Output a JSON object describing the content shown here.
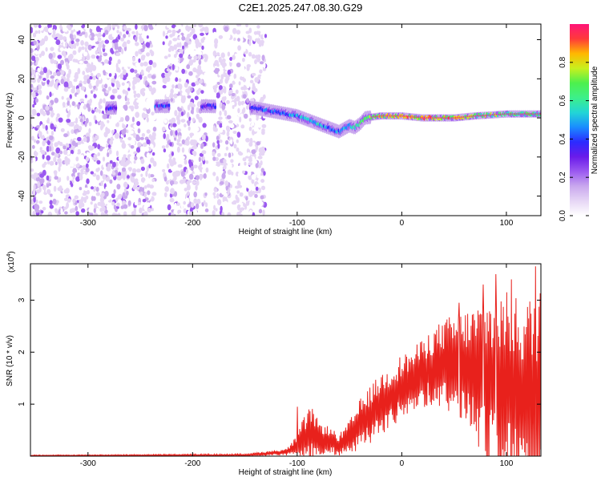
{
  "title": "C2E1.2025.247.08.30.G29",
  "colors": {
    "snr_line": "#e8211c",
    "frame": "#000000",
    "colorbar_stops": [
      "#ffffff",
      "#e6d6f5",
      "#c9a8ee",
      "#9b59f0",
      "#6a1bea",
      "#2b2bff",
      "#1a8cff",
      "#22d6d6",
      "#3df08a",
      "#4df04d",
      "#c8f01e",
      "#ffb800",
      "#ff3a3a",
      "#ff1478"
    ]
  },
  "chart_data": [
    {
      "type": "heatmap",
      "name": "spectrogram",
      "xlabel": "Height of straight line (km)",
      "ylabel": "Frequency (Hz)",
      "xlim": [
        -355,
        133
      ],
      "ylim": [
        -50,
        48
      ],
      "xticks": [
        -300,
        -200,
        -100,
        0,
        100
      ],
      "xtick_labels": [
        "-300",
        "-200",
        "-100",
        "0",
        "100"
      ],
      "yticks": [
        -40,
        -20,
        0,
        20,
        40
      ],
      "ytick_labels": [
        "-40",
        "-20",
        "0",
        "20",
        "40"
      ],
      "colorbar": {
        "label": "Normalized spectral amplitude",
        "range": [
          0,
          1
        ],
        "ticks": [
          0.0,
          0.2,
          0.4,
          0.6,
          0.8
        ],
        "tick_labels": [
          "0.0",
          "0.2",
          "0.4",
          "0.6",
          "0.8"
        ]
      },
      "signal_track": {
        "x": [
          -280,
          -230,
          -185,
          -140,
          -120,
          -100,
          -80,
          -70,
          -60,
          -50,
          -45,
          -40,
          -35,
          -20,
          0,
          20,
          50,
          70,
          100,
          133
        ],
        "frequency": [
          5,
          6,
          6,
          5,
          3,
          1,
          -3,
          -5,
          -7,
          -4,
          -5,
          -3,
          0,
          1,
          1,
          0,
          0,
          1,
          2,
          2
        ],
        "amplitude": [
          0.4,
          0.45,
          0.4,
          0.45,
          0.5,
          0.55,
          0.6,
          0.5,
          0.55,
          0.6,
          0.7,
          0.75,
          0.8,
          0.85,
          0.95,
          0.95,
          0.9,
          0.8,
          0.75,
          0.7
        ]
      },
      "noise_region_x": [
        -355,
        -140
      ],
      "gap_x": [
        [
          -236,
          -228
        ],
        [
          -186,
          -180
        ]
      ]
    },
    {
      "type": "line",
      "name": "snr",
      "xlabel": "Height of straight line (km)",
      "ylabel": "SNR (10 * v/v)",
      "yscale_label_base": "(x10",
      "yscale_label_exp": "4",
      "yscale_label_close": ")",
      "xlim": [
        -355,
        133
      ],
      "ylim": [
        0,
        3.7
      ],
      "xticks": [
        -300,
        -200,
        -100,
        0,
        100
      ],
      "xtick_labels": [
        "-300",
        "-200",
        "-100",
        "0",
        "100"
      ],
      "yticks": [
        1,
        2,
        3
      ],
      "ytick_labels": [
        "1",
        "2",
        "3"
      ],
      "envelope": {
        "x": [
          -355,
          -150,
          -110,
          -100,
          -95,
          -90,
          -85,
          -80,
          -70,
          -60,
          -50,
          -40,
          -30,
          -20,
          -10,
          0,
          10,
          20,
          30,
          40,
          50,
          60,
          70,
          80,
          90,
          100,
          110,
          120,
          125,
          130,
          133
        ],
        "mean": [
          0.01,
          0.02,
          0.08,
          0.18,
          0.3,
          0.4,
          0.45,
          0.35,
          0.3,
          0.2,
          0.35,
          0.6,
          0.8,
          1.0,
          1.15,
          1.3,
          1.45,
          1.6,
          1.7,
          1.75,
          1.75,
          1.7,
          1.6,
          1.5,
          1.4,
          1.3,
          1.2,
          1.1,
          1.0,
          1.0,
          1.0
        ],
        "amp": [
          0.01,
          0.02,
          0.06,
          0.2,
          0.35,
          0.45,
          0.45,
          0.3,
          0.25,
          0.2,
          0.3,
          0.45,
          0.5,
          0.55,
          0.55,
          0.6,
          0.55,
          0.6,
          0.7,
          0.8,
          0.9,
          1.0,
          1.2,
          1.4,
          1.6,
          1.7,
          1.7,
          1.8,
          1.9,
          2.3,
          2.5
        ]
      },
      "peaks": [
        {
          "x": -100,
          "y": 0.95
        },
        {
          "x": 55,
          "y": 2.95
        },
        {
          "x": 78,
          "y": 3.3
        },
        {
          "x": 90,
          "y": 3.5
        },
        {
          "x": 105,
          "y": 3.4
        },
        {
          "x": 128,
          "y": 3.65
        }
      ]
    }
  ]
}
